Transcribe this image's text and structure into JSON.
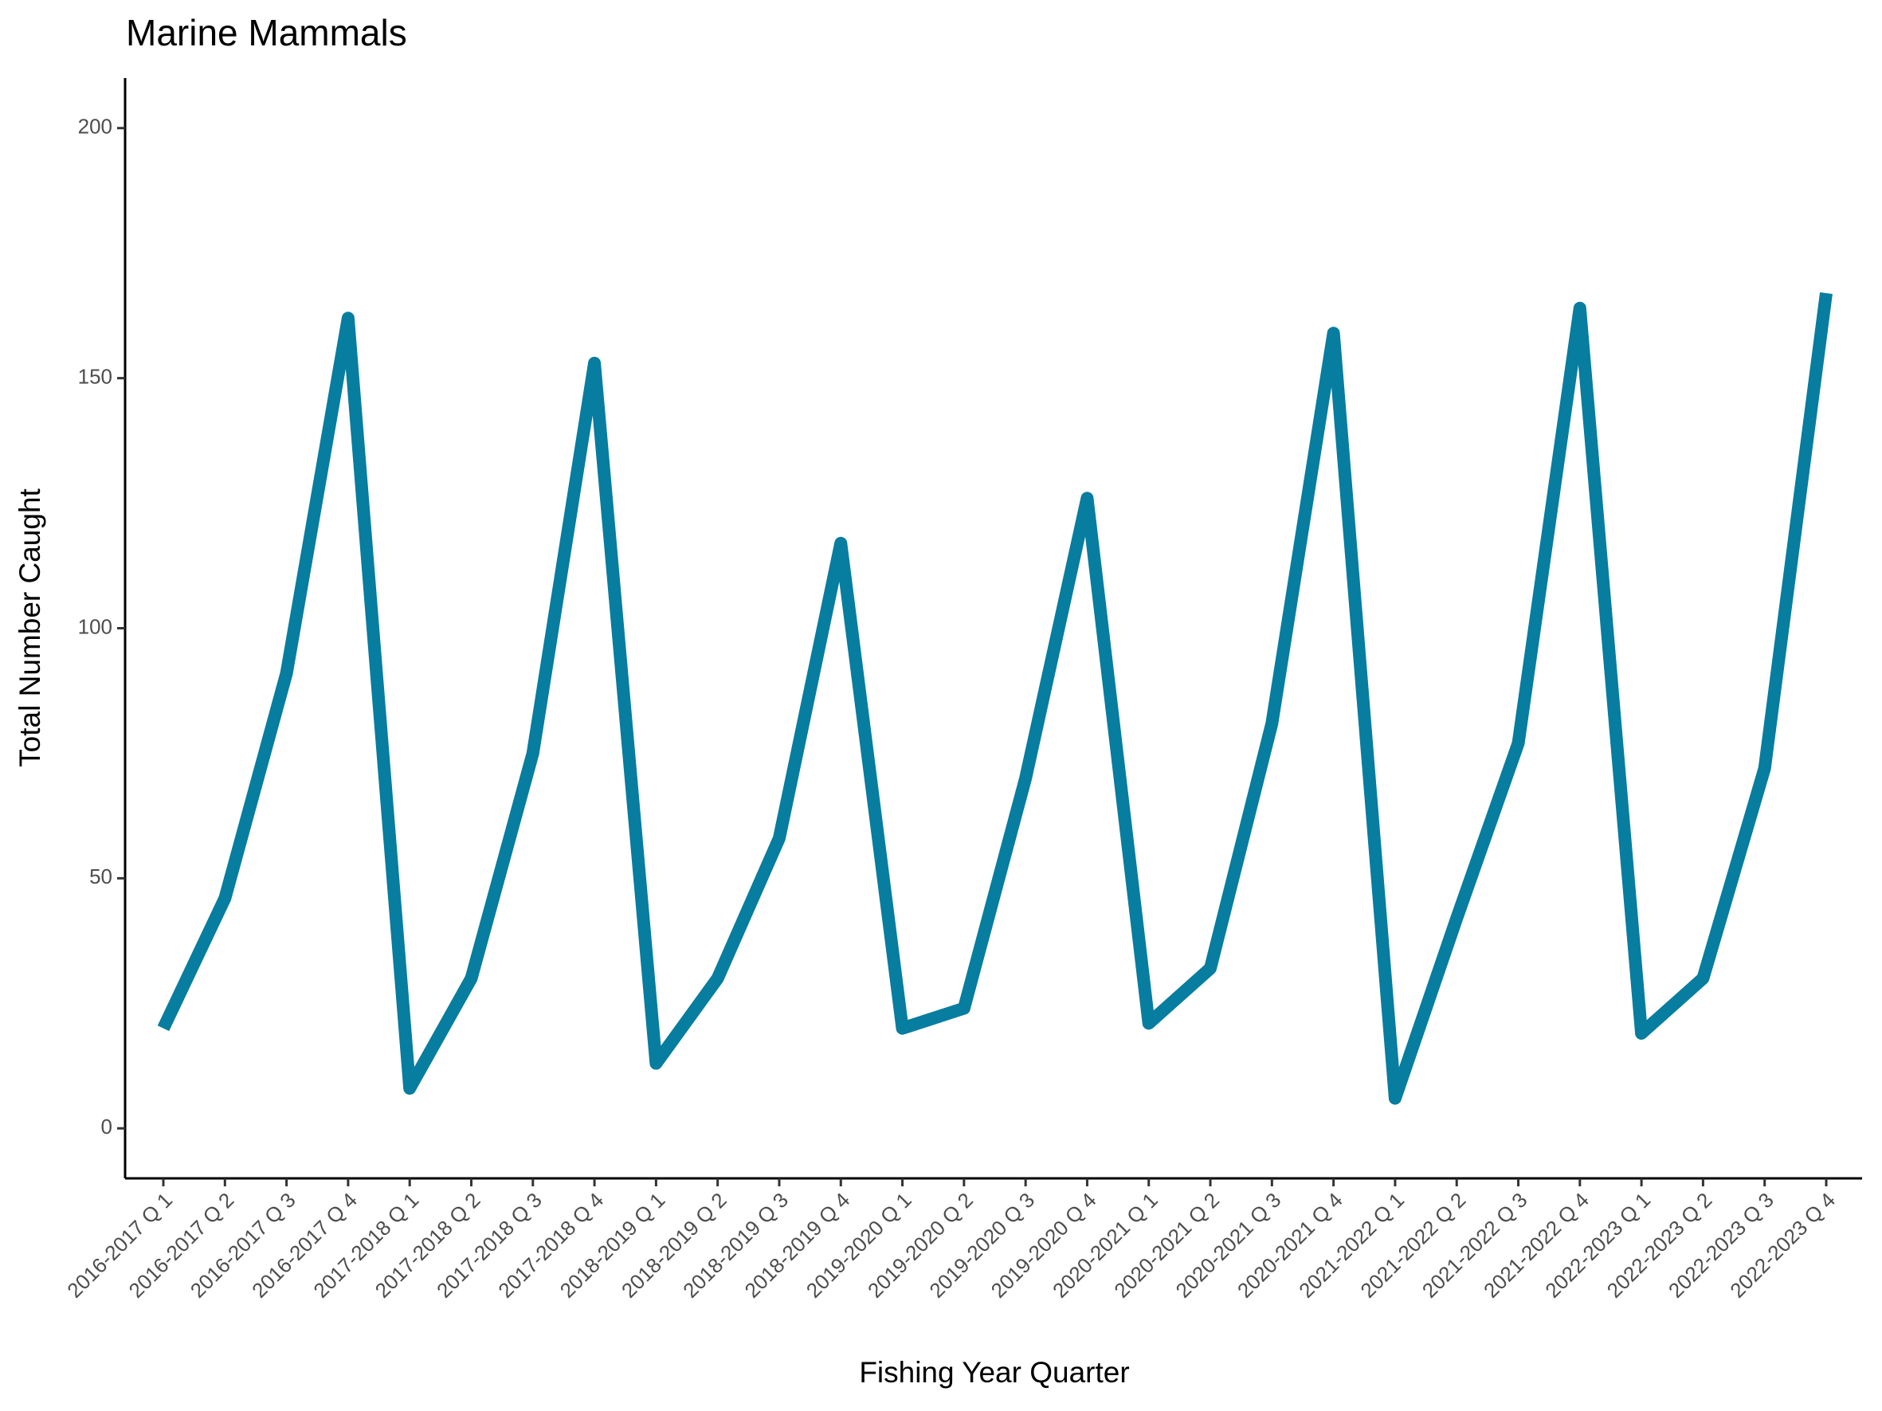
{
  "chart_data": {
    "type": "line",
    "title": "Marine Mammals",
    "x_label": "Fishing Year Quarter",
    "y_label": "Total Number Caught",
    "categories": [
      "2016-2017 Q 1",
      "2016-2017 Q 2",
      "2016-2017 Q 3",
      "2016-2017 Q 4",
      "2017-2018 Q 1",
      "2017-2018 Q 2",
      "2017-2018 Q 3",
      "2017-2018 Q 4",
      "2018-2019 Q 1",
      "2018-2019 Q 2",
      "2018-2019 Q 3",
      "2018-2019 Q 4",
      "2019-2020 Q 1",
      "2019-2020 Q 2",
      "2019-2020 Q 3",
      "2019-2020 Q 4",
      "2020-2021 Q 1",
      "2020-2021 Q 2",
      "2020-2021 Q 3",
      "2020-2021 Q 4",
      "2021-2022 Q 1",
      "2021-2022 Q 2",
      "2021-2022 Q 3",
      "2021-2022 Q 4",
      "2022-2023 Q 1",
      "2022-2023 Q 2",
      "2022-2023 Q 3",
      "2022-2023 Q 4"
    ],
    "values": [
      20,
      46,
      91,
      162,
      8,
      30,
      75,
      153,
      13,
      30,
      58,
      117,
      20,
      24,
      70,
      126,
      21,
      32,
      81,
      159,
      6,
      42,
      77,
      164,
      19,
      30,
      72,
      167
    ],
    "color": "#077d9f",
    "ylim": [
      -10,
      210
    ],
    "yticks": [
      0,
      50,
      100,
      150,
      200
    ],
    "grid": false
  }
}
